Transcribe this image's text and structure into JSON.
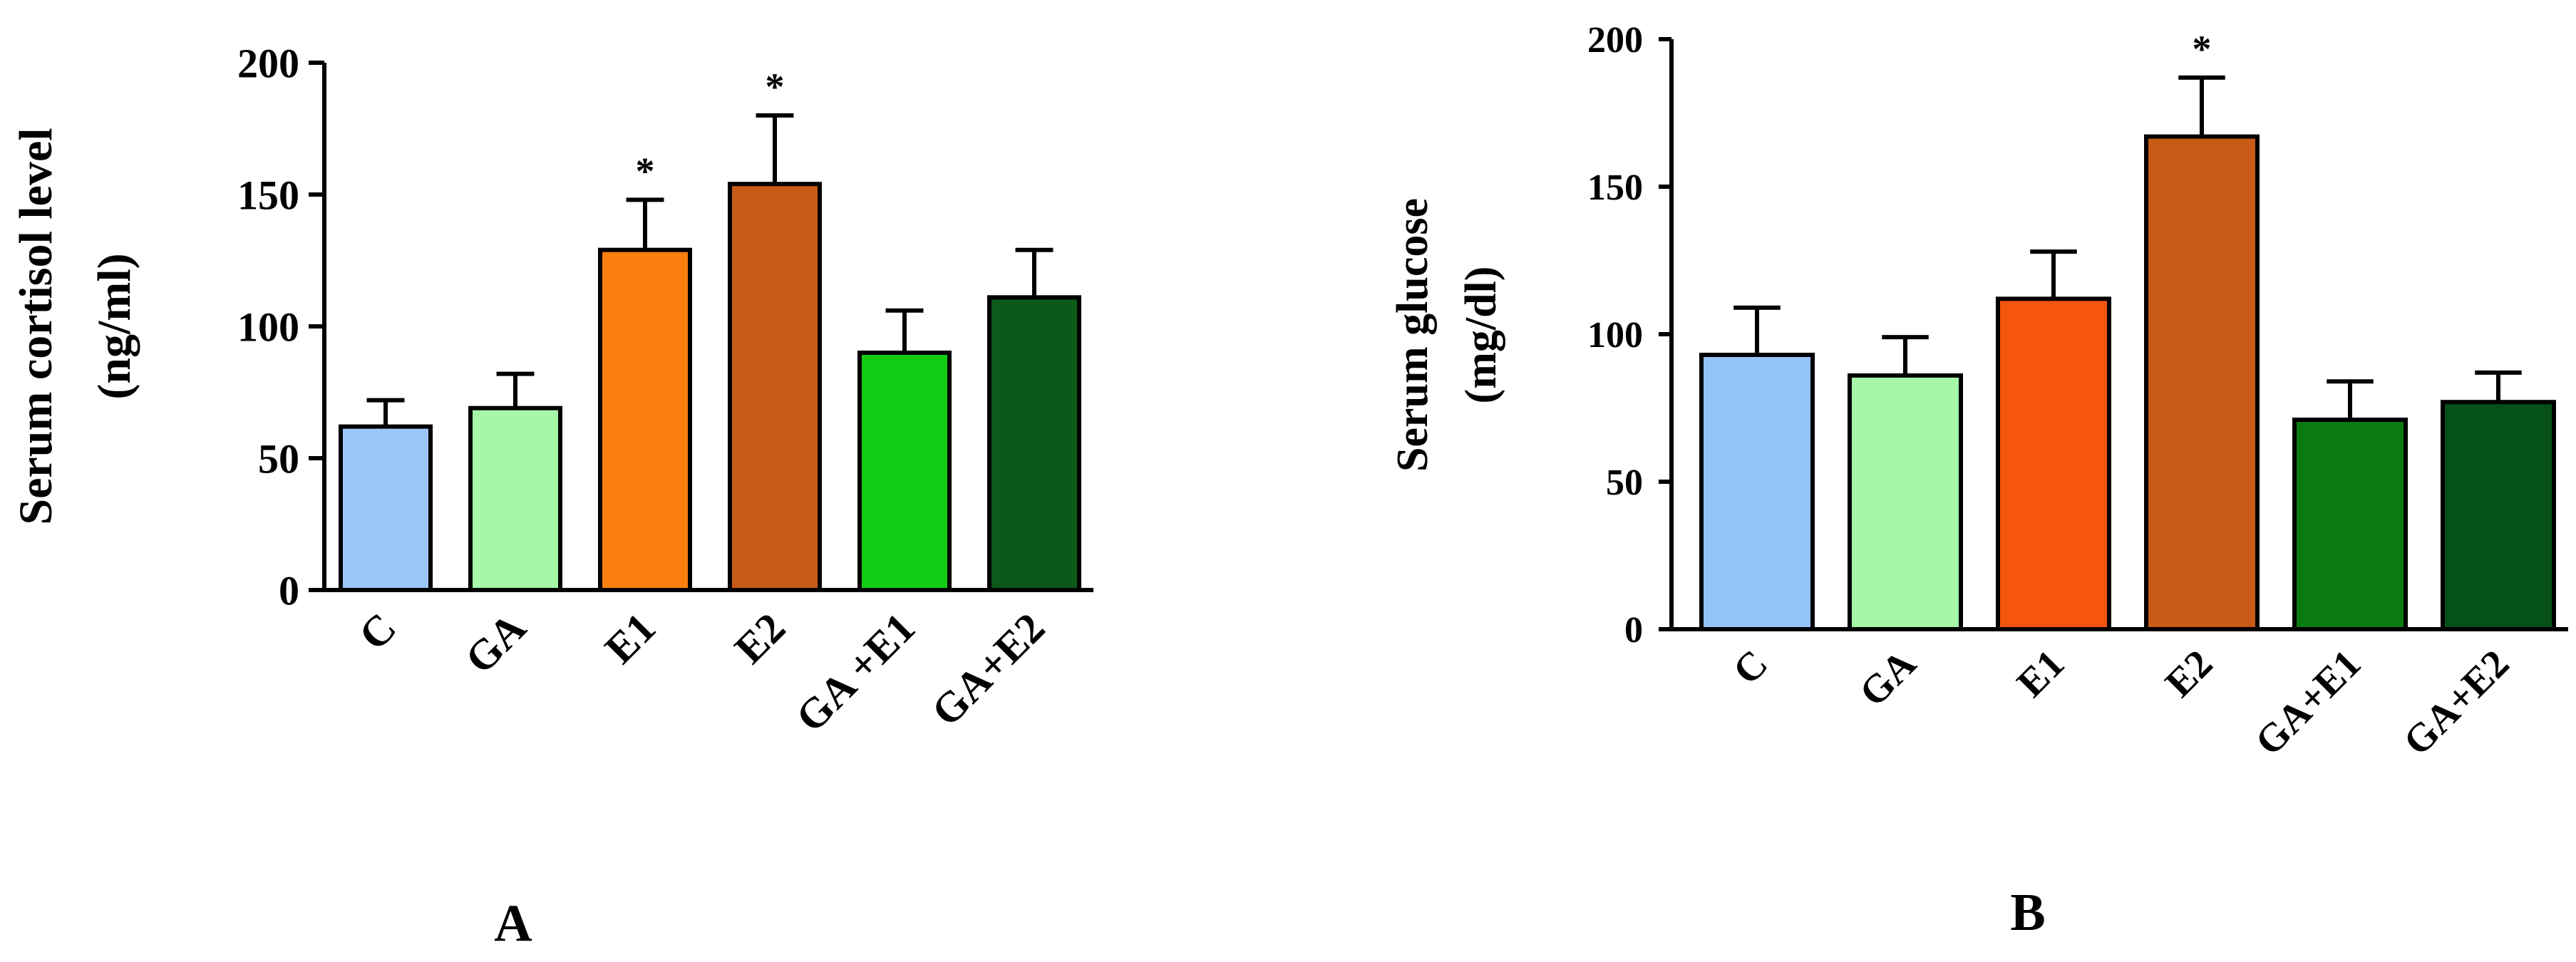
{
  "chart_data": [
    {
      "type": "bar",
      "panel_label": "A",
      "ylabel_line1": "Serum cortisol level",
      "ylabel_line2": "(ng/ml)",
      "ylim": [
        0,
        200
      ],
      "yticks": [
        0,
        50,
        100,
        150,
        200
      ],
      "categories": [
        "C",
        "GA",
        "E1",
        "E2",
        "GA +E1",
        "GA+E2"
      ],
      "values": [
        62,
        69,
        129,
        154,
        90,
        111
      ],
      "errors": [
        10,
        13,
        19,
        26,
        16,
        18
      ],
      "significance": [
        "",
        "",
        "*",
        "*",
        "",
        ""
      ],
      "colors": [
        "#9cc6f5",
        "#a6f7a8",
        "#fb7f0f",
        "#c75a14",
        "#12cc14",
        "#0b5a1a"
      ]
    },
    {
      "type": "bar",
      "panel_label": "B",
      "ylabel_line1": "Serum glucose",
      "ylabel_line2": "(mg/dl)",
      "ylim": [
        0,
        200
      ],
      "yticks": [
        0,
        50,
        100,
        150,
        200
      ],
      "categories": [
        "C",
        "GA",
        "E1",
        "E2",
        "GA+E1",
        "GA+E2"
      ],
      "values": [
        93,
        86,
        112,
        167,
        71,
        77
      ],
      "errors": [
        16,
        13,
        16,
        20,
        13,
        10
      ],
      "significance": [
        "",
        "",
        "",
        "*",
        "",
        ""
      ],
      "colors": [
        "#93c3f9",
        "#a6f7a8",
        "#f5550c",
        "#c75a14",
        "#0a7a12",
        "#06501a"
      ]
    }
  ]
}
